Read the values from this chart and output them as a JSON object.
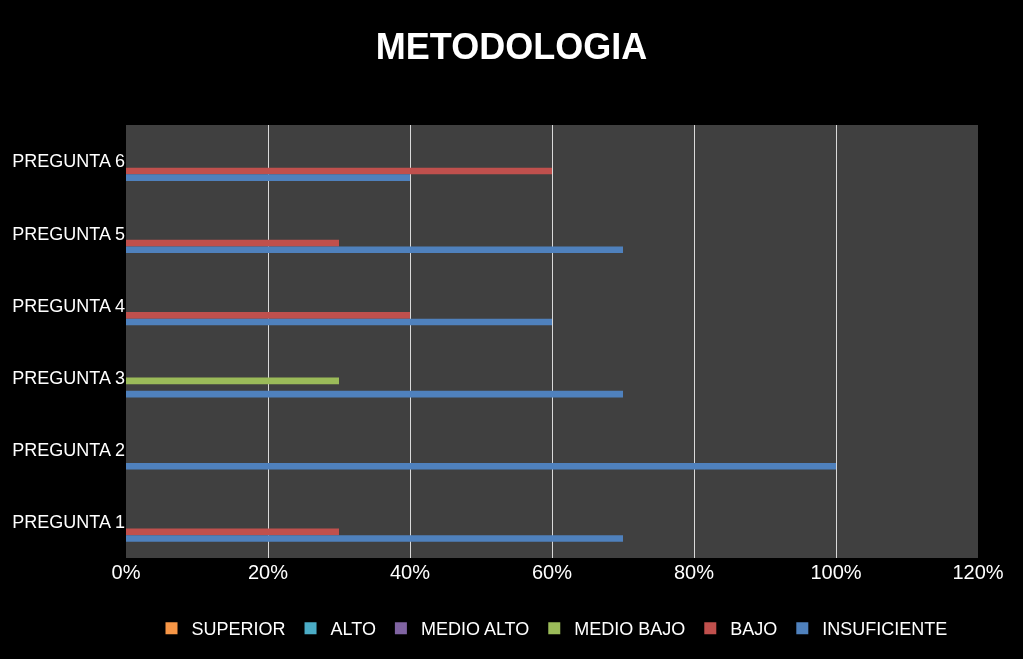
{
  "chart_data": {
    "type": "bar",
    "title": "METODOLOGIA",
    "orientation": "horizontal",
    "categories": [
      "PREGUNTA 6",
      "PREGUNTA 5",
      "PREGUNTA 4",
      "PREGUNTA 3",
      "PREGUNTA 2",
      "PREGUNTA 1"
    ],
    "series": [
      {
        "name": "SUPERIOR",
        "color": "#f79646",
        "values": [
          null,
          null,
          null,
          null,
          null,
          null
        ]
      },
      {
        "name": "ALTO",
        "color": "#4bacc6",
        "values": [
          null,
          null,
          null,
          null,
          null,
          null
        ]
      },
      {
        "name": "MEDIO ALTO",
        "color": "#8064a2",
        "values": [
          null,
          null,
          null,
          null,
          null,
          null
        ]
      },
      {
        "name": "MEDIO BAJO",
        "color": "#9bbb59",
        "values": [
          null,
          null,
          null,
          30,
          null,
          null
        ]
      },
      {
        "name": "BAJO",
        "color": "#c0504d",
        "values": [
          60,
          30,
          40,
          null,
          null,
          30
        ]
      },
      {
        "name": "INSUFICIENTE",
        "color": "#4f81bd",
        "values": [
          40,
          70,
          60,
          70,
          100,
          70
        ]
      }
    ],
    "xlim": [
      0,
      120
    ],
    "xticks": [
      {
        "value": 0,
        "label": "0%"
      },
      {
        "value": 20,
        "label": "20%"
      },
      {
        "value": 40,
        "label": "40%"
      },
      {
        "value": 60,
        "label": "60%"
      },
      {
        "value": 80,
        "label": "80%"
      },
      {
        "value": 100,
        "label": "100%"
      },
      {
        "value": 120,
        "label": "120%"
      }
    ],
    "grid": "x",
    "legend": "bottom"
  }
}
